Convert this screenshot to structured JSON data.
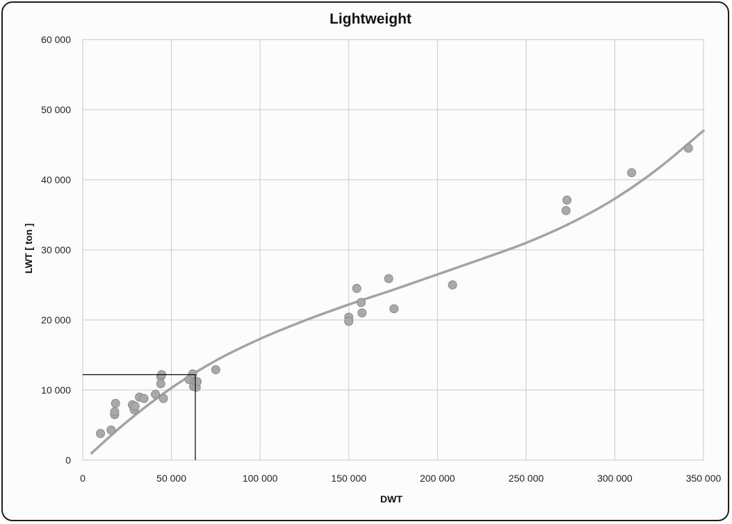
{
  "chart_data": {
    "type": "scatter",
    "title": "Lightweight",
    "xlabel": "DWT",
    "ylabel": "LWT  [ ton ]",
    "xlim": [
      0,
      350000
    ],
    "ylim": [
      0,
      60000
    ],
    "x_ticks": [
      0,
      50000,
      100000,
      150000,
      200000,
      250000,
      300000,
      350000
    ],
    "x_tick_labels": [
      "0",
      "50 000",
      "100 000",
      "150 000",
      "200 000",
      "250 000",
      "300 000",
      "350 000"
    ],
    "y_ticks": [
      0,
      10000,
      20000,
      30000,
      40000,
      50000,
      60000
    ],
    "y_tick_labels": [
      "0",
      "10 000",
      "20 000",
      "30 000",
      "40 000",
      "50 000",
      "60 000"
    ],
    "grid": true,
    "legend": "none",
    "colors": {
      "points": "#a9a9a9",
      "point_stroke": "#8a8a8a",
      "trend": "#a3a3a3",
      "grid": "#c9c9c9",
      "reference_box": "#000000"
    },
    "points": [
      {
        "x": 10000,
        "y": 3800
      },
      {
        "x": 16000,
        "y": 4300
      },
      {
        "x": 18000,
        "y": 6500
      },
      {
        "x": 18000,
        "y": 6900
      },
      {
        "x": 18500,
        "y": 8100
      },
      {
        "x": 28000,
        "y": 7900
      },
      {
        "x": 29000,
        "y": 7200
      },
      {
        "x": 29500,
        "y": 7700
      },
      {
        "x": 32000,
        "y": 9000
      },
      {
        "x": 34500,
        "y": 8800
      },
      {
        "x": 41000,
        "y": 9400
      },
      {
        "x": 44000,
        "y": 11900
      },
      {
        "x": 44500,
        "y": 12200
      },
      {
        "x": 44000,
        "y": 10900
      },
      {
        "x": 45500,
        "y": 8800
      },
      {
        "x": 60000,
        "y": 11500
      },
      {
        "x": 62000,
        "y": 12300
      },
      {
        "x": 63000,
        "y": 11000
      },
      {
        "x": 62500,
        "y": 10500
      },
      {
        "x": 64000,
        "y": 10400
      },
      {
        "x": 64500,
        "y": 11200
      },
      {
        "x": 75000,
        "y": 12900
      },
      {
        "x": 150000,
        "y": 20400
      },
      {
        "x": 150000,
        "y": 19800
      },
      {
        "x": 154500,
        "y": 24500
      },
      {
        "x": 157000,
        "y": 22500
      },
      {
        "x": 157500,
        "y": 21000
      },
      {
        "x": 172500,
        "y": 25900
      },
      {
        "x": 175500,
        "y": 21600
      },
      {
        "x": 208500,
        "y": 25000
      },
      {
        "x": 272500,
        "y": 35600
      },
      {
        "x": 273000,
        "y": 37100
      },
      {
        "x": 309500,
        "y": 41000
      },
      {
        "x": 341500,
        "y": 44500
      }
    ],
    "trend_line": [
      {
        "x": 5000,
        "y": 1000
      },
      {
        "x": 25000,
        "y": 5500
      },
      {
        "x": 50000,
        "y": 10300
      },
      {
        "x": 75000,
        "y": 14200
      },
      {
        "x": 100000,
        "y": 17300
      },
      {
        "x": 125000,
        "y": 19900
      },
      {
        "x": 150000,
        "y": 22200
      },
      {
        "x": 175000,
        "y": 24300
      },
      {
        "x": 200000,
        "y": 26500
      },
      {
        "x": 225000,
        "y": 28700
      },
      {
        "x": 250000,
        "y": 31000
      },
      {
        "x": 275000,
        "y": 33800
      },
      {
        "x": 300000,
        "y": 37300
      },
      {
        "x": 325000,
        "y": 41700
      },
      {
        "x": 350000,
        "y": 47000
      }
    ],
    "reference_box": {
      "x": 63500,
      "y": 12200
    }
  }
}
